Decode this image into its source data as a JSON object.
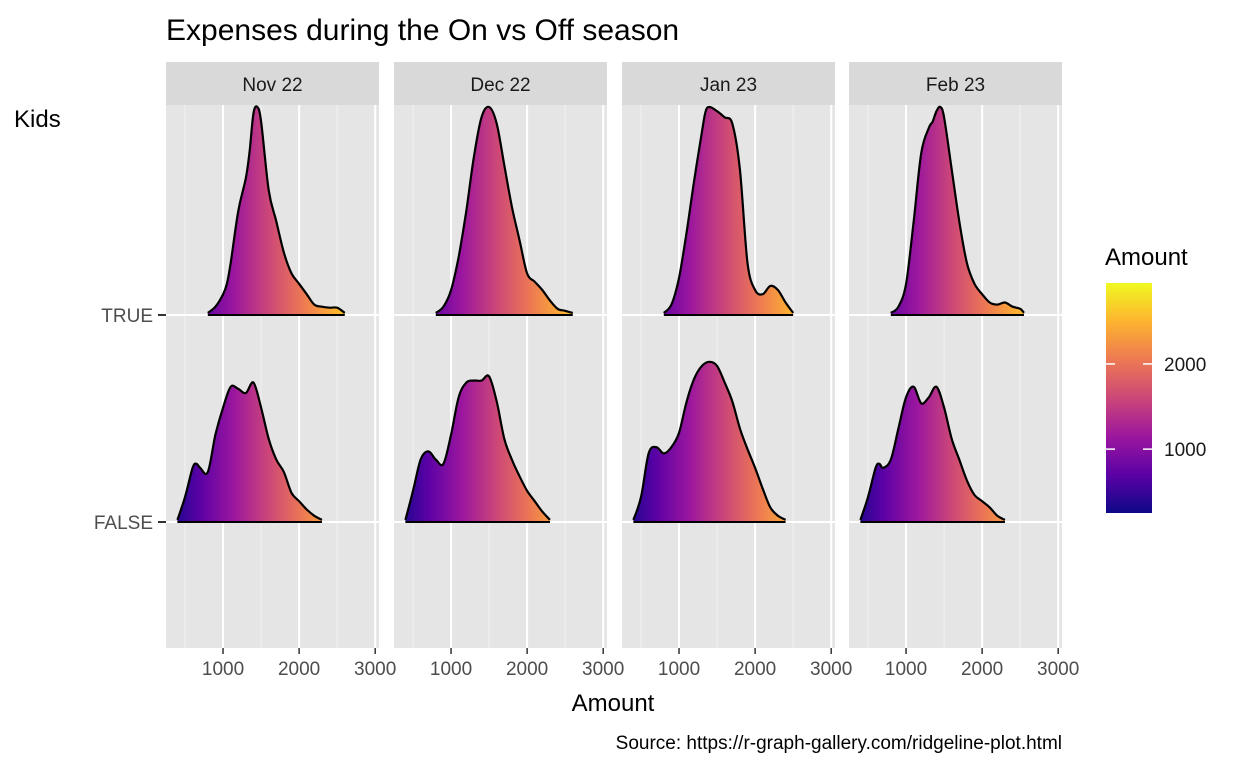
{
  "chart_data": {
    "type": "ridgeline",
    "title": "Expenses during the On vs Off season",
    "xlabel": "Amount",
    "ylabel": "Kids",
    "caption": "Source: https://r-graph-gallery.com/ridgeline-plot.html",
    "xlim": [
      250,
      3050
    ],
    "x_ticks": [
      "1000",
      "2000",
      "3000"
    ],
    "x_tick_values": [
      1000,
      2000,
      3000
    ],
    "y_categories": [
      "TRUE",
      "FALSE"
    ],
    "facets": [
      "Nov 22",
      "Dec 22",
      "Jan 23",
      "Feb 23"
    ],
    "legend": {
      "title": "Amount",
      "position": "right",
      "range": [
        250,
        2950
      ],
      "ticks": [
        "1000",
        "2000"
      ],
      "tick_values": [
        1000,
        2000
      ],
      "palette": [
        "#0d0887",
        "#5c01a6",
        "#9c179e",
        "#cc4778",
        "#ed7953",
        "#fdb42f",
        "#f0f921"
      ]
    },
    "grid": true,
    "series": [
      {
        "facet": "Nov 22",
        "ridges": [
          {
            "group": "TRUE",
            "x": [
              800,
              900,
              1000,
              1050,
              1100,
              1200,
              1300,
              1350,
              1400,
              1450,
              1500,
              1600,
              1700,
              1800,
              1900,
              2000,
              2100,
              2200,
              2300,
              2400,
              2500,
              2600
            ],
            "y": [
              0.01,
              0.04,
              0.1,
              0.15,
              0.25,
              0.5,
              0.66,
              0.79,
              0.97,
              1.0,
              0.93,
              0.6,
              0.45,
              0.3,
              0.2,
              0.15,
              0.1,
              0.05,
              0.04,
              0.035,
              0.035,
              0.01
            ]
          },
          {
            "group": "FALSE",
            "x": [
              400,
              500,
              600,
              650,
              700,
              800,
              900,
              1000,
              1100,
              1200,
              1300,
              1400,
              1500,
              1600,
              1700,
              1800,
              1900,
              2000,
              2100,
              2200,
              2300
            ],
            "y": [
              0.01,
              0.12,
              0.26,
              0.28,
              0.26,
              0.24,
              0.42,
              0.55,
              0.65,
              0.64,
              0.62,
              0.67,
              0.55,
              0.4,
              0.3,
              0.24,
              0.14,
              0.1,
              0.06,
              0.03,
              0.01
            ]
          }
        ]
      },
      {
        "facet": "Dec 22",
        "ridges": [
          {
            "group": "TRUE",
            "x": [
              800,
              900,
              1000,
              1100,
              1200,
              1300,
              1400,
              1500,
              1600,
              1700,
              1800,
              1900,
              2000,
              2100,
              2200,
              2300,
              2400,
              2500,
              2600
            ],
            "y": [
              0.01,
              0.04,
              0.12,
              0.28,
              0.5,
              0.76,
              0.95,
              1.0,
              0.92,
              0.72,
              0.52,
              0.36,
              0.2,
              0.16,
              0.12,
              0.07,
              0.03,
              0.02,
              0.01
            ]
          },
          {
            "group": "FALSE",
            "x": [
              400,
              500,
              600,
              700,
              800,
              900,
              1000,
              1100,
              1200,
              1300,
              1400,
              1500,
              1600,
              1700,
              1800,
              1900,
              2000,
              2100,
              2200,
              2300
            ],
            "y": [
              0.01,
              0.15,
              0.3,
              0.34,
              0.3,
              0.28,
              0.42,
              0.6,
              0.67,
              0.68,
              0.68,
              0.7,
              0.58,
              0.4,
              0.3,
              0.22,
              0.15,
              0.1,
              0.05,
              0.01
            ]
          }
        ]
      },
      {
        "facet": "Jan 23",
        "ridges": [
          {
            "group": "TRUE",
            "x": [
              800,
              900,
              1000,
              1100,
              1200,
              1300,
              1350,
              1400,
              1500,
              1600,
              1700,
              1800,
              1900,
              2000,
              2100,
              2200,
              2300,
              2400,
              2500
            ],
            "y": [
              0.01,
              0.05,
              0.18,
              0.4,
              0.65,
              0.88,
              0.98,
              1.0,
              0.98,
              0.95,
              0.92,
              0.7,
              0.25,
              0.12,
              0.1,
              0.14,
              0.12,
              0.06,
              0.01
            ]
          },
          {
            "group": "FALSE",
            "x": [
              400,
              500,
              600,
              700,
              800,
              900,
              1000,
              1100,
              1200,
              1300,
              1400,
              1500,
              1600,
              1700,
              1800,
              1900,
              2000,
              2100,
              2200,
              2300,
              2400
            ],
            "y": [
              0.01,
              0.12,
              0.33,
              0.36,
              0.33,
              0.36,
              0.43,
              0.58,
              0.69,
              0.75,
              0.77,
              0.75,
              0.67,
              0.58,
              0.45,
              0.35,
              0.26,
              0.16,
              0.07,
              0.03,
              0.01
            ]
          }
        ]
      },
      {
        "facet": "Feb 23",
        "ridges": [
          {
            "group": "TRUE",
            "x": [
              800,
              900,
              1000,
              1100,
              1200,
              1300,
              1350,
              1400,
              1450,
              1500,
              1600,
              1700,
              1800,
              1900,
              2000,
              2100,
              2200,
              2300,
              2400,
              2500,
              2550
            ],
            "y": [
              0.01,
              0.04,
              0.15,
              0.45,
              0.78,
              0.9,
              0.93,
              0.98,
              1.0,
              0.95,
              0.7,
              0.45,
              0.25,
              0.15,
              0.1,
              0.06,
              0.05,
              0.06,
              0.04,
              0.03,
              0.01
            ]
          },
          {
            "group": "FALSE",
            "x": [
              400,
              500,
              600,
              650,
              700,
              800,
              900,
              1000,
              1100,
              1200,
              1300,
              1400,
              1500,
              1600,
              1700,
              1800,
              1900,
              2000,
              2100,
              2200,
              2300
            ],
            "y": [
              0.01,
              0.12,
              0.26,
              0.28,
              0.26,
              0.3,
              0.45,
              0.6,
              0.65,
              0.57,
              0.6,
              0.65,
              0.55,
              0.4,
              0.3,
              0.2,
              0.13,
              0.1,
              0.07,
              0.03,
              0.01
            ]
          }
        ]
      }
    ]
  }
}
